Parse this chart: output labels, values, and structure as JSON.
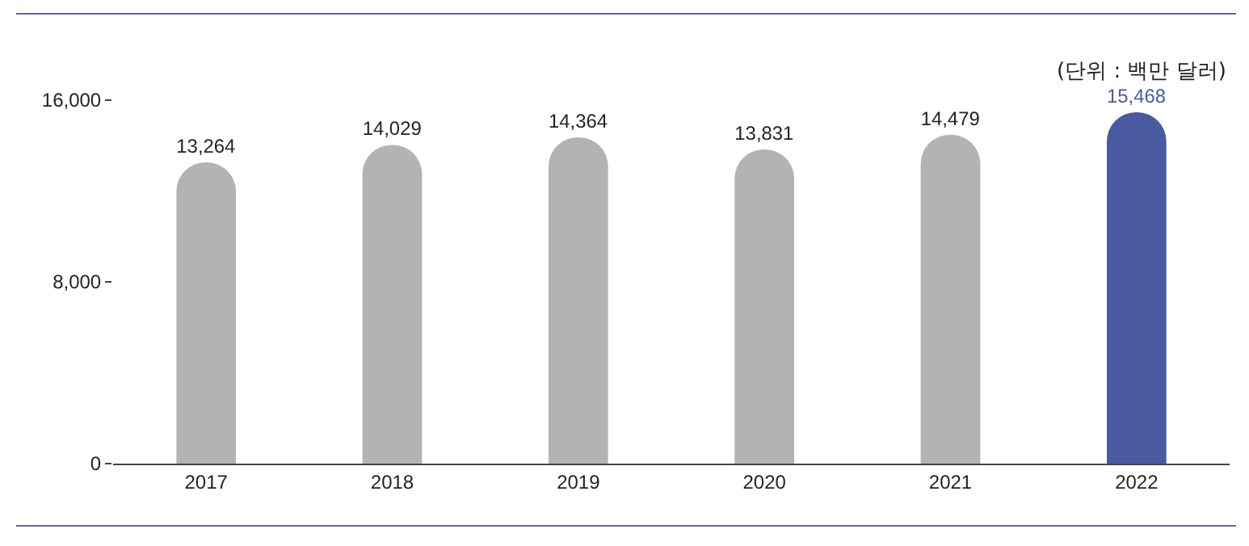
{
  "chart_data": {
    "type": "bar",
    "categories": [
      "2017",
      "2018",
      "2019",
      "2020",
      "2021",
      "2022"
    ],
    "values": [
      13264,
      14029,
      14364,
      13831,
      14479,
      15468
    ],
    "colors": [
      "#b3b3b3",
      "#b3b3b3",
      "#b3b3b3",
      "#b3b3b3",
      "#b3b3b3",
      "#4a5aa0"
    ],
    "ylim": [
      0,
      16000
    ],
    "yticks": [
      0,
      {
        "value": 8000,
        "label": "8,000"
      },
      {
        "value": 16000,
        "label": "16,000"
      }
    ],
    "value_labels": [
      "13,264",
      "14,029",
      "14,364",
      "13,831",
      "14,479",
      "15,468"
    ],
    "grid": false,
    "annotations": [
      "(단위 : 백만 달러)"
    ]
  }
}
